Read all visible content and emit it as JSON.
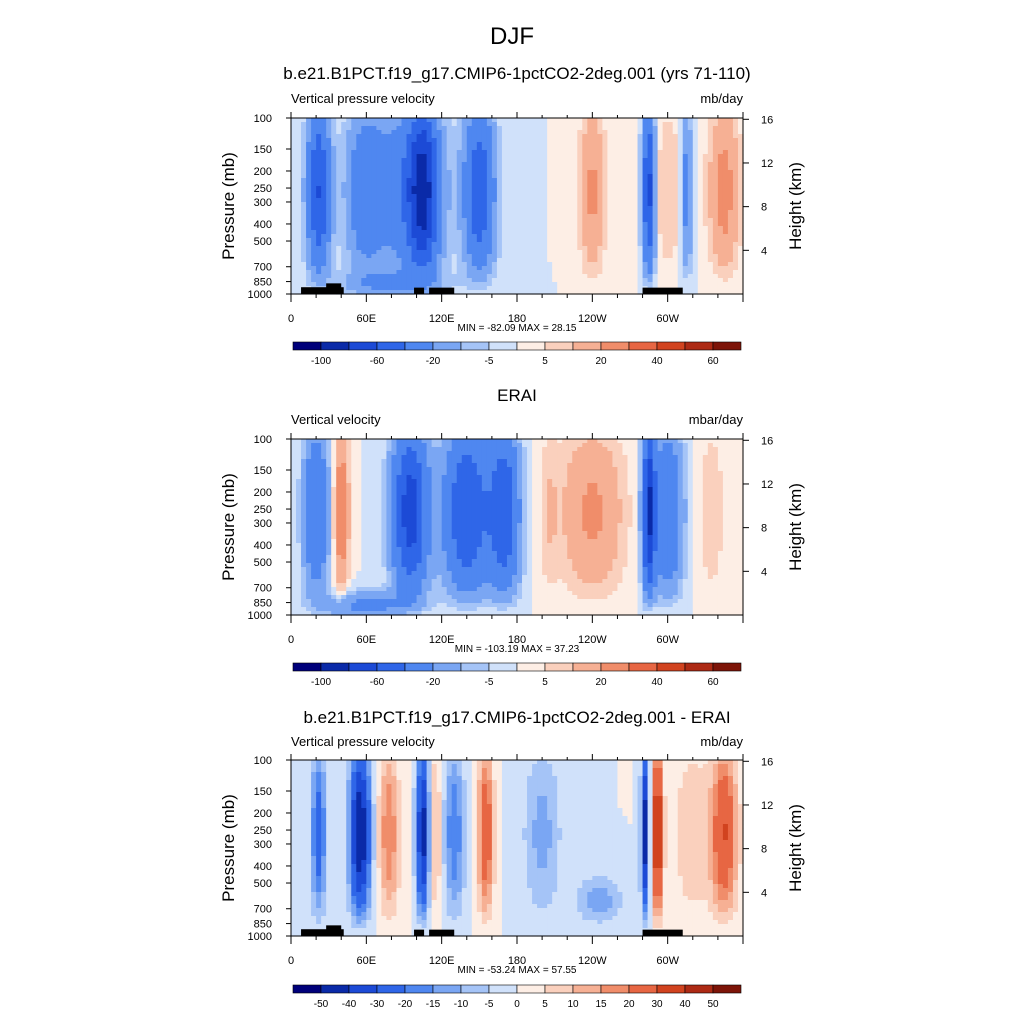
{
  "figure": {
    "title": "DJF"
  },
  "colors": {
    "model_obs_levels": [
      "#00007a",
      "#0a2aa8",
      "#1c4ad6",
      "#2f66e8",
      "#4f87f0",
      "#7aa6f3",
      "#a5c4f7",
      "#d0e1fa",
      "#fdeee5",
      "#fad0bd",
      "#f6b094",
      "#f08d6a",
      "#e76643",
      "#d1431f",
      "#ad2a14",
      "#7d1408"
    ],
    "diff_levels": [
      "#00007a",
      "#0a2aa8",
      "#1c4ad6",
      "#2f66e8",
      "#4f87f0",
      "#7aa6f3",
      "#a5c4f7",
      "#d0e1fa",
      "#fdeee5",
      "#fad0bd",
      "#f6b094",
      "#f08d6a",
      "#e76643",
      "#d1431f",
      "#ad2a14",
      "#7d1408"
    ],
    "topography": "#000000"
  },
  "chart_data": [
    {
      "type": "heatmap",
      "title": "b.e21.B1PCT.f19_g17.CMIP6-1pctCO2-2deg.001 (yrs 71-110)",
      "left_label": "Vertical pressure velocity",
      "right_label": "mb/day",
      "xlabel": "",
      "ylabel": "Pressure (mb)",
      "ylabel_right": "Height (km)",
      "x_ticks": [
        "0",
        "60E",
        "120E",
        "180",
        "120W",
        "60W"
      ],
      "y_ticks": [
        "100",
        "150",
        "200",
        "250",
        "300",
        "400",
        "500",
        "700",
        "850",
        "1000"
      ],
      "y_ticks_right": [
        "4",
        "8",
        "12",
        "16"
      ],
      "stats": "MIN = -82.09  MAX =  28.15",
      "colorbar_labels": [
        "-100",
        "-60",
        "-20",
        "-5",
        "5",
        "20",
        "40",
        "60"
      ],
      "ylim": [
        1000,
        100
      ],
      "xlim": [
        0,
        360
      ]
    },
    {
      "type": "heatmap",
      "title": "ERAI",
      "left_label": "Vertical velocity",
      "right_label": "mbar/day",
      "xlabel": "",
      "ylabel": "Pressure (mb)",
      "ylabel_right": "Height (km)",
      "x_ticks": [
        "0",
        "60E",
        "120E",
        "180",
        "120W",
        "60W"
      ],
      "y_ticks": [
        "100",
        "150",
        "200",
        "250",
        "300",
        "400",
        "500",
        "700",
        "850",
        "1000"
      ],
      "y_ticks_right": [
        "4",
        "8",
        "12",
        "16"
      ],
      "stats": "MIN = -103.19  MAX =  37.23",
      "colorbar_labels": [
        "-100",
        "-60",
        "-20",
        "-5",
        "5",
        "20",
        "40",
        "60"
      ],
      "ylim": [
        1000,
        100
      ],
      "xlim": [
        0,
        360
      ]
    },
    {
      "type": "heatmap",
      "title": "b.e21.B1PCT.f19_g17.CMIP6-1pctCO2-2deg.001 - ERAI",
      "left_label": "Vertical pressure velocity",
      "right_label": "mb/day",
      "xlabel": "",
      "ylabel": "Pressure (mb)",
      "ylabel_right": "Height (km)",
      "x_ticks": [
        "0",
        "60E",
        "120E",
        "180",
        "120W",
        "60W"
      ],
      "y_ticks": [
        "100",
        "150",
        "200",
        "250",
        "300",
        "400",
        "500",
        "700",
        "850",
        "1000"
      ],
      "y_ticks_right": [
        "4",
        "8",
        "12",
        "16"
      ],
      "stats": "MIN = -53.24  MAX =  57.55",
      "colorbar_labels": [
        "-50",
        "-40",
        "-30",
        "-20",
        "-15",
        "-10",
        "-5",
        "0",
        "5",
        "10",
        "15",
        "20",
        "30",
        "40",
        "50"
      ],
      "ylim": [
        1000,
        100
      ],
      "xlim": [
        0,
        360
      ]
    }
  ]
}
